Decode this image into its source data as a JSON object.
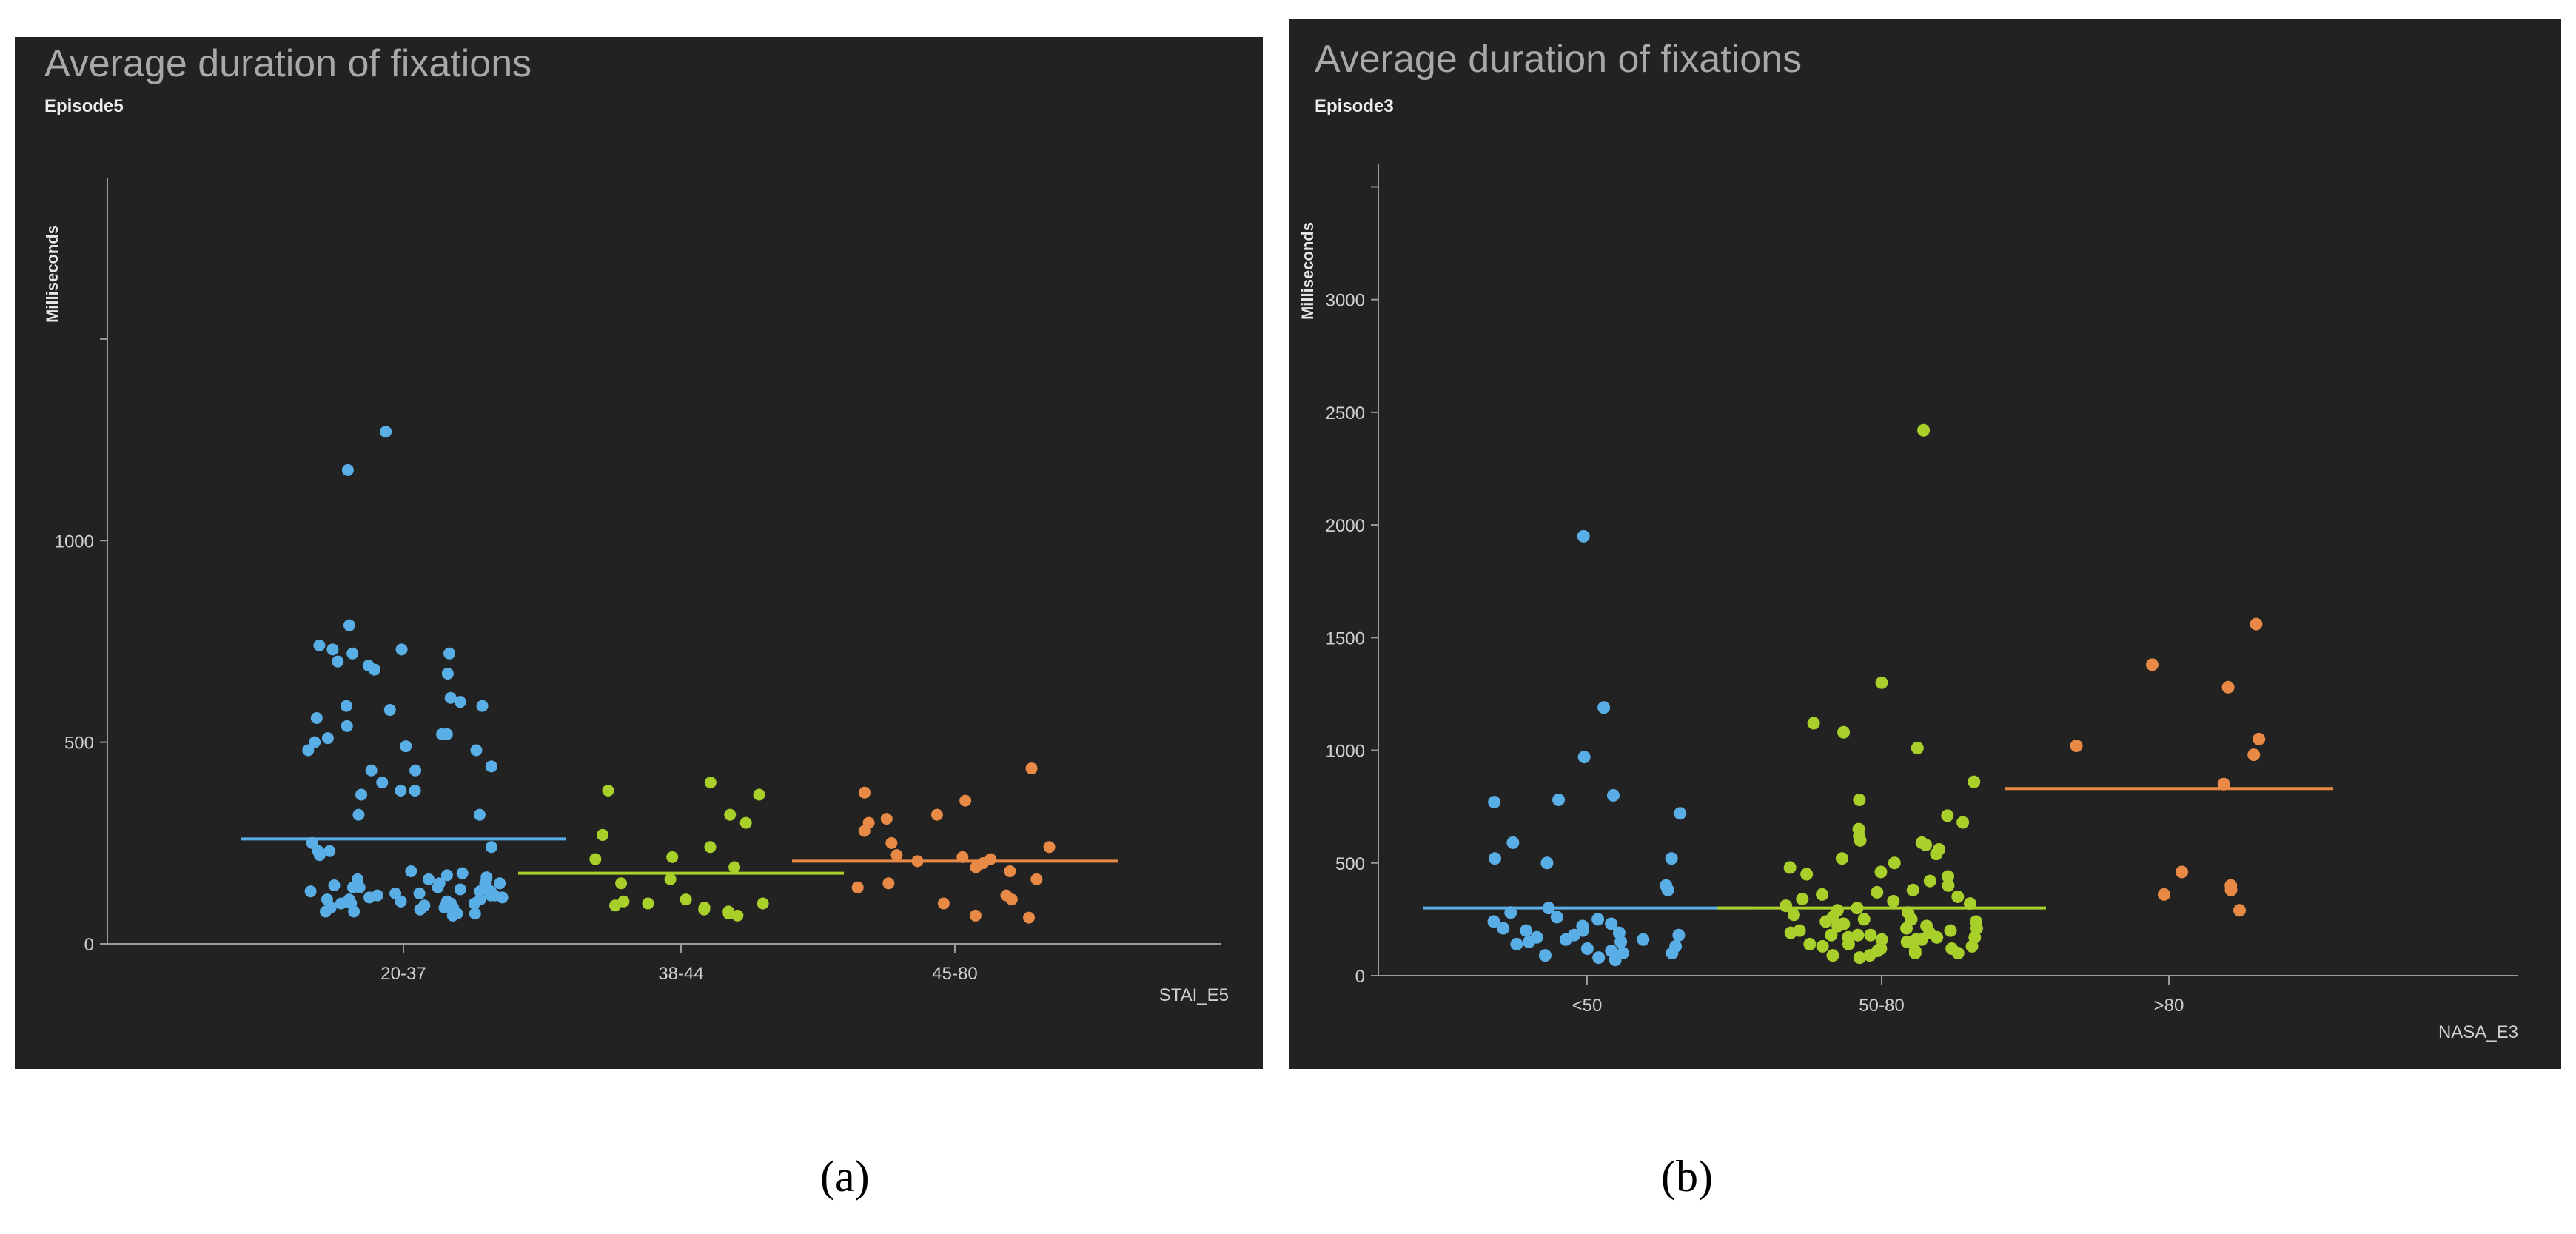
{
  "captions": {
    "a": "(a)",
    "b": "(b)"
  },
  "colors": {
    "background": "#222222",
    "axis": "#9a9a9a",
    "text": "#d0d0d0",
    "blue": "#5aaee6",
    "green": "#a9cf2a",
    "orange": "#e88a45"
  },
  "chart_data": [
    {
      "type": "scatter",
      "title": "Average duration of fixations",
      "subtitle": "Episode5",
      "ylabel": "Milliseconds",
      "xlabel": "STAI_E5",
      "ylim": [
        0,
        1900
      ],
      "yticks": [
        0,
        500,
        1000
      ],
      "categories": [
        "20-37",
        "38-44",
        "45-80"
      ],
      "series": [
        {
          "category": "20-37",
          "color": "#5aaee6",
          "mean": 260,
          "values": [
            1270,
            1175,
            790,
            740,
            730,
            730,
            720,
            720,
            700,
            690,
            680,
            670,
            610,
            600,
            590,
            590,
            580,
            560,
            540,
            520,
            520,
            510,
            500,
            490,
            480,
            480,
            440,
            430,
            430,
            400,
            380,
            380,
            370,
            320,
            320,
            250,
            240,
            230,
            230,
            220,
            180,
            175,
            170,
            165,
            160,
            160,
            150,
            150,
            145,
            140,
            140,
            135,
            130,
            130,
            125,
            125,
            120,
            120,
            120,
            115,
            115,
            110,
            110,
            110,
            105,
            105,
            100,
            100,
            100,
            95,
            95,
            90,
            90,
            90,
            85,
            85,
            80,
            80,
            75,
            75,
            70,
            130,
            140,
            150,
            100
          ]
        },
        {
          "category": "38-44",
          "color": "#a9cf2a",
          "mean": 175,
          "values": [
            400,
            380,
            370,
            320,
            300,
            270,
            240,
            215,
            210,
            190,
            160,
            150,
            110,
            105,
            100,
            100,
            95,
            90,
            85,
            80,
            75,
            70
          ]
        },
        {
          "category": "45-80",
          "color": "#e88a45",
          "mean": 205,
          "values": [
            435,
            375,
            355,
            320,
            310,
            300,
            280,
            250,
            240,
            220,
            215,
            210,
            205,
            200,
            190,
            180,
            160,
            150,
            140,
            120,
            110,
            100,
            70,
            65
          ]
        }
      ]
    },
    {
      "type": "scatter",
      "title": "Average duration of fixations",
      "subtitle": "Episode3",
      "ylabel": "Milliseconds",
      "xlabel": "NASA_E3",
      "ylim": [
        0,
        3600
      ],
      "yticks": [
        0,
        500,
        1000,
        1500,
        2000,
        2500,
        3000
      ],
      "categories": [
        "<50",
        "50-80",
        ">80"
      ],
      "series": [
        {
          "category": "<50",
          "color": "#5aaee6",
          "mean": 300,
          "values": [
            1950,
            1190,
            970,
            800,
            780,
            770,
            720,
            590,
            520,
            520,
            500,
            400,
            380,
            300,
            280,
            260,
            250,
            240,
            230,
            220,
            210,
            200,
            200,
            190,
            180,
            180,
            170,
            160,
            160,
            150,
            150,
            140,
            130,
            120,
            110,
            100,
            100,
            90,
            80,
            70
          ]
        },
        {
          "category": "50-80",
          "color": "#a9cf2a",
          "mean": 300,
          "values": [
            2420,
            1300,
            1120,
            1080,
            1010,
            860,
            780,
            710,
            680,
            650,
            620,
            600,
            590,
            580,
            560,
            540,
            520,
            500,
            480,
            460,
            450,
            440,
            420,
            400,
            380,
            370,
            360,
            350,
            340,
            330,
            320,
            310,
            300,
            290,
            280,
            270,
            260,
            250,
            240,
            230,
            220,
            210,
            200,
            190,
            180,
            170,
            160,
            150,
            140,
            130,
            120,
            110,
            100,
            90,
            80,
            180,
            170,
            160,
            150,
            140,
            130,
            120,
            110,
            100,
            90,
            250,
            240,
            230,
            220,
            210,
            200,
            190,
            180,
            170,
            160
          ]
        },
        {
          "category": ">80",
          "color": "#e88a45",
          "mean": 830,
          "values": [
            1560,
            1380,
            1280,
            1050,
            1020,
            980,
            850,
            460,
            400,
            380,
            360,
            290
          ]
        }
      ]
    }
  ]
}
